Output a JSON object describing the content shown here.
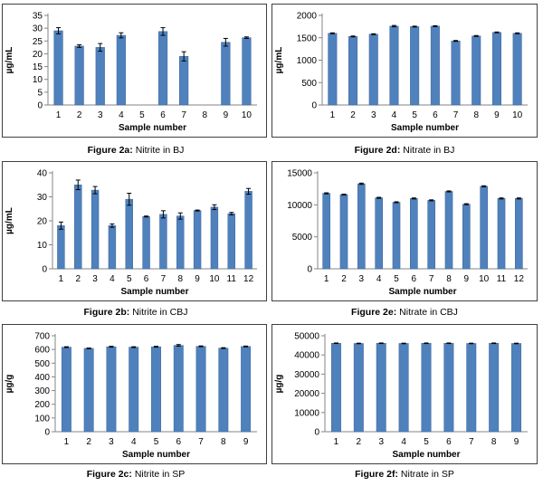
{
  "colors": {
    "bar": "#4f81bd",
    "bar_edge": "#3a6699",
    "axis": "#868686",
    "text": "#000000"
  },
  "chart_data": [
    {
      "type": "bar",
      "figure_label": "Figure 2a:",
      "figure_title": "Nitrite in BJ",
      "xlabel": "Sample number",
      "ylabel": "µg/mL",
      "categories": [
        "1",
        "2",
        "3",
        "4",
        "5",
        "6",
        "7",
        "8",
        "9",
        "10"
      ],
      "values": [
        29,
        23,
        22.5,
        27.2,
        0,
        28.7,
        19,
        0,
        24.5,
        26.3
      ],
      "errors": [
        1.2,
        0.5,
        1.5,
        1.0,
        0,
        1.5,
        1.8,
        0,
        1.5,
        0.3
      ],
      "yticks": [
        0,
        5,
        10,
        15,
        20,
        25,
        30,
        35
      ],
      "ylim": [
        0,
        35
      ]
    },
    {
      "type": "bar",
      "figure_label": "Figure 2d:",
      "figure_title": "Nitrate in BJ",
      "xlabel": "Sample number",
      "ylabel": "µg/mL",
      "categories": [
        "1",
        "2",
        "3",
        "4",
        "5",
        "6",
        "7",
        "8",
        "9",
        "10"
      ],
      "values": [
        1600,
        1530,
        1580,
        1760,
        1750,
        1760,
        1430,
        1540,
        1620,
        1600
      ],
      "errors": [
        10,
        10,
        10,
        15,
        10,
        10,
        10,
        10,
        10,
        10
      ],
      "yticks": [
        0,
        500,
        1000,
        1500,
        2000
      ],
      "ylim": [
        0,
        2000
      ]
    },
    {
      "type": "bar",
      "figure_label": "Figure 2b:",
      "figure_title": "Nitrite in CBJ",
      "xlabel": "Sample number",
      "ylabel": "µg/mL",
      "categories": [
        "1",
        "2",
        "3",
        "4",
        "5",
        "6",
        "7",
        "8",
        "9",
        "10",
        "11",
        "12"
      ],
      "values": [
        18,
        35,
        32.8,
        18,
        29,
        21.8,
        22.7,
        22,
        24.3,
        25.7,
        23,
        32.3
      ],
      "errors": [
        1.5,
        2.0,
        1.5,
        0.7,
        2.5,
        0.2,
        1.5,
        1.3,
        0.2,
        1.0,
        0.5,
        1.2
      ],
      "yticks": [
        0,
        10,
        20,
        30,
        40
      ],
      "ylim": [
        0,
        40
      ]
    },
    {
      "type": "bar",
      "figure_label": "Figure 2e:",
      "figure_title": "Nitrate in CBJ",
      "xlabel": "Sample number",
      "ylabel": "",
      "categories": [
        "1",
        "2",
        "3",
        "4",
        "5",
        "6",
        "7",
        "8",
        "9",
        "10",
        "11",
        "12"
      ],
      "values": [
        11800,
        11600,
        13300,
        11100,
        10400,
        11000,
        10700,
        12100,
        10100,
        12900,
        11000,
        11000
      ],
      "errors": [
        80,
        80,
        100,
        80,
        80,
        80,
        80,
        80,
        80,
        80,
        80,
        80
      ],
      "yticks": [
        0,
        5000,
        10000,
        15000
      ],
      "ylim": [
        0,
        15000
      ]
    },
    {
      "type": "bar",
      "figure_label": "Figure 2c:",
      "figure_title": "Nitrite in SP",
      "xlabel": "Sample number",
      "ylabel": "µg/g",
      "categories": [
        "1",
        "2",
        "3",
        "4",
        "5",
        "6",
        "7",
        "8",
        "9"
      ],
      "values": [
        617,
        608,
        620,
        617,
        620,
        630,
        623,
        610,
        622
      ],
      "errors": [
        3,
        3,
        3,
        3,
        3,
        6,
        3,
        3,
        3
      ],
      "yticks": [
        0,
        100,
        200,
        300,
        400,
        500,
        600,
        700
      ],
      "ylim": [
        0,
        700
      ]
    },
    {
      "type": "bar",
      "figure_label": "Figure 2f:",
      "figure_title": "Nitrate in SP",
      "xlabel": "Sample number",
      "ylabel": "µg/g",
      "categories": [
        "1",
        "2",
        "3",
        "4",
        "5",
        "6",
        "7",
        "8",
        "9"
      ],
      "values": [
        46100,
        46000,
        46100,
        46000,
        46100,
        46100,
        46000,
        46100,
        46000
      ],
      "errors": [
        150,
        150,
        150,
        150,
        150,
        150,
        150,
        150,
        150
      ],
      "yticks": [
        0,
        10000,
        20000,
        30000,
        40000,
        50000
      ],
      "ylim": [
        0,
        50000
      ]
    }
  ]
}
